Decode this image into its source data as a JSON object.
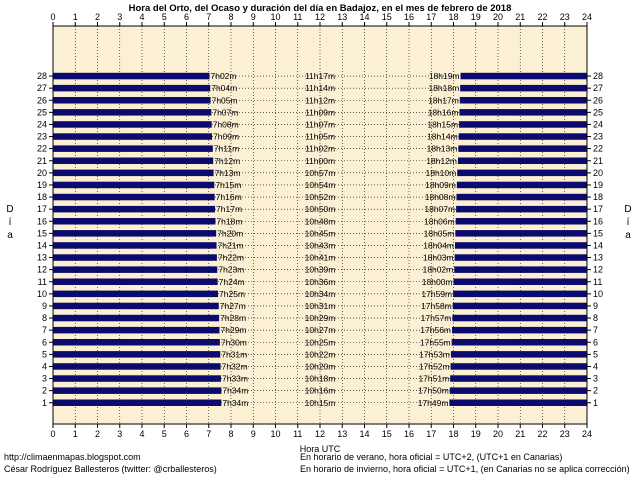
{
  "chart_data": {
    "type": "bar",
    "title": "Hora del Orto, del Ocaso y duración del día en Badajoz, en el mes de febrero de 2018",
    "xlabel": "Hora UTC",
    "ylabel": "Día",
    "xlim": [
      0,
      24
    ],
    "ylim": [
      1,
      28
    ],
    "x_ticks": [
      0,
      1,
      2,
      3,
      4,
      5,
      6,
      7,
      8,
      9,
      10,
      11,
      12,
      13,
      14,
      15,
      16,
      17,
      18,
      19,
      20,
      21,
      22,
      23,
      24
    ],
    "grid": true,
    "colors": {
      "background": "#fbf0d3",
      "night": "#0b0b6e",
      "grid": "#000000"
    },
    "days": [
      {
        "day": 28,
        "sunrise": "7h02m",
        "duration": "11h17m",
        "sunset": "18h19m"
      },
      {
        "day": 27,
        "sunrise": "7h04m",
        "duration": "11h14m",
        "sunset": "18h18m"
      },
      {
        "day": 26,
        "sunrise": "7h05m",
        "duration": "11h12m",
        "sunset": "18h17m"
      },
      {
        "day": 25,
        "sunrise": "7h07m",
        "duration": "11h09m",
        "sunset": "18h16m"
      },
      {
        "day": 24,
        "sunrise": "7h08m",
        "duration": "11h07m",
        "sunset": "18h15m"
      },
      {
        "day": 23,
        "sunrise": "7h09m",
        "duration": "11h05m",
        "sunset": "18h14m"
      },
      {
        "day": 22,
        "sunrise": "7h11m",
        "duration": "11h02m",
        "sunset": "18h13m"
      },
      {
        "day": 21,
        "sunrise": "7h12m",
        "duration": "11h00m",
        "sunset": "18h12m"
      },
      {
        "day": 20,
        "sunrise": "7h13m",
        "duration": "10h57m",
        "sunset": "18h10m"
      },
      {
        "day": 19,
        "sunrise": "7h15m",
        "duration": "10h54m",
        "sunset": "18h09m"
      },
      {
        "day": 18,
        "sunrise": "7h16m",
        "duration": "10h52m",
        "sunset": "18h08m"
      },
      {
        "day": 17,
        "sunrise": "7h17m",
        "duration": "10h50m",
        "sunset": "18h07m"
      },
      {
        "day": 16,
        "sunrise": "7h18m",
        "duration": "10h48m",
        "sunset": "18h06m"
      },
      {
        "day": 15,
        "sunrise": "7h20m",
        "duration": "10h45m",
        "sunset": "18h05m"
      },
      {
        "day": 14,
        "sunrise": "7h21m",
        "duration": "10h43m",
        "sunset": "18h04m"
      },
      {
        "day": 13,
        "sunrise": "7h22m",
        "duration": "10h41m",
        "sunset": "18h03m"
      },
      {
        "day": 12,
        "sunrise": "7h23m",
        "duration": "10h39m",
        "sunset": "18h02m"
      },
      {
        "day": 11,
        "sunrise": "7h24m",
        "duration": "10h36m",
        "sunset": "18h00m"
      },
      {
        "day": 10,
        "sunrise": "7h25m",
        "duration": "10h34m",
        "sunset": "17h59m"
      },
      {
        "day": 9,
        "sunrise": "7h27m",
        "duration": "10h31m",
        "sunset": "17h58m"
      },
      {
        "day": 8,
        "sunrise": "7h28m",
        "duration": "10h29m",
        "sunset": "17h57m"
      },
      {
        "day": 7,
        "sunrise": "7h29m",
        "duration": "10h27m",
        "sunset": "17h56m"
      },
      {
        "day": 6,
        "sunrise": "7h30m",
        "duration": "10h25m",
        "sunset": "17h55m"
      },
      {
        "day": 5,
        "sunrise": "7h31m",
        "duration": "10h22m",
        "sunset": "17h53m"
      },
      {
        "day": 4,
        "sunrise": "7h32m",
        "duration": "10h20m",
        "sunset": "17h52m"
      },
      {
        "day": 3,
        "sunrise": "7h33m",
        "duration": "10h18m",
        "sunset": "17h51m"
      },
      {
        "day": 2,
        "sunrise": "7h34m",
        "duration": "10h16m",
        "sunset": "17h50m"
      },
      {
        "day": 1,
        "sunrise": "7h34m",
        "duration": "10h15m",
        "sunset": "17h49m"
      }
    ]
  },
  "footer": {
    "blog": "http://climaenmapas.blogspot.com",
    "author": "César Rodríguez Ballesteros (twitter: @crballesteros)",
    "note_summer": "En horario de verano, hora oficial = UTC+2, (UTC+1 en Canarias)",
    "note_winter": "En horario de invierno, hora oficial = UTC+1, (en Canarias no se aplica corrección)"
  }
}
